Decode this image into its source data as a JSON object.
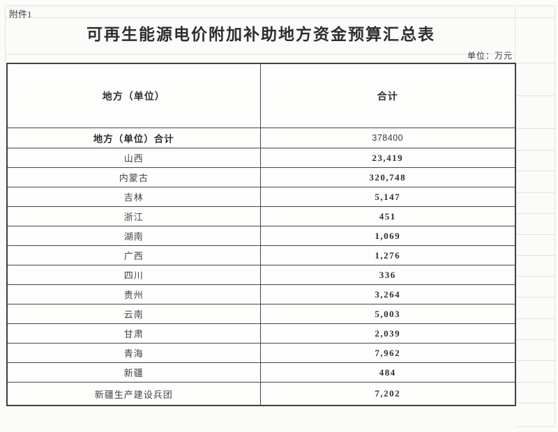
{
  "document": {
    "attachment_label": "附件1",
    "title": "可再生能源电价附加补助地方资金预算汇总表",
    "unit_note": "单位：万元"
  },
  "table": {
    "col_headers": {
      "region": "地方（单位）",
      "total": "合计"
    },
    "summary_row": {
      "label": "地方（单位）合计",
      "value": "378400"
    },
    "rows": [
      {
        "label": "山西",
        "value": "23,419"
      },
      {
        "label": "内蒙古",
        "value": "320,748"
      },
      {
        "label": "吉林",
        "value": "5,147"
      },
      {
        "label": "浙江",
        "value": "451"
      },
      {
        "label": "湖南",
        "value": "1,069"
      },
      {
        "label": "广西",
        "value": "1,276"
      },
      {
        "label": "四川",
        "value": "336"
      },
      {
        "label": "贵州",
        "value": "3,264"
      },
      {
        "label": "云南",
        "value": "5,003"
      },
      {
        "label": "甘肃",
        "value": "2,039"
      },
      {
        "label": "青海",
        "value": "7,962"
      },
      {
        "label": "新疆",
        "value": "484"
      },
      {
        "label": "新疆生产建设兵团",
        "value": "7,202"
      }
    ]
  }
}
